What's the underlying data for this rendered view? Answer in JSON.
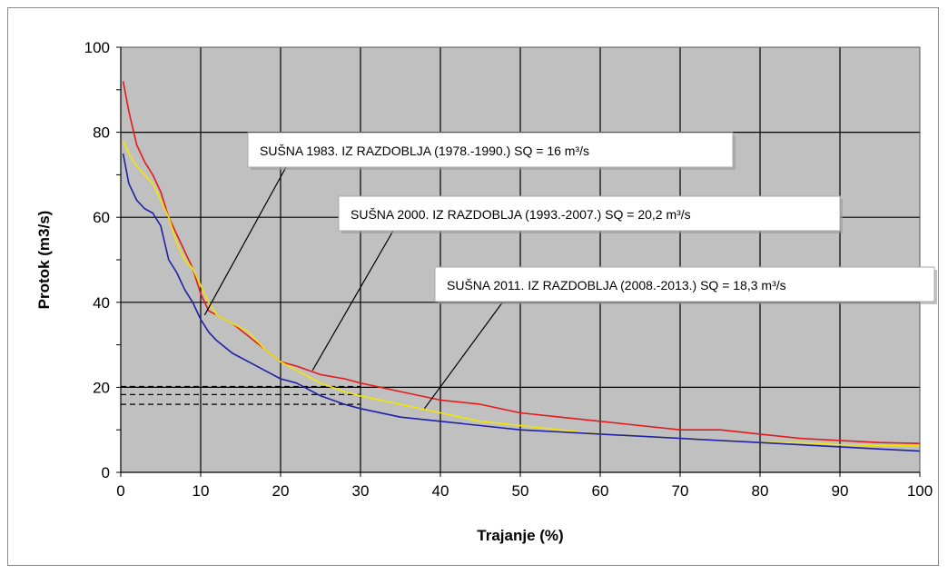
{
  "chart_data": {
    "type": "line",
    "title": "",
    "xlabel": "Trajanje (%)",
    "ylabel": "Protok (m3/s)",
    "xlim": [
      0,
      100
    ],
    "ylim": [
      0,
      100
    ],
    "x_ticks": [
      "0",
      "10",
      "20",
      "30",
      "40",
      "50",
      "60",
      "70",
      "80",
      "90",
      "100"
    ],
    "y_ticks": [
      "0",
      "20",
      "40",
      "60",
      "80",
      "100"
    ],
    "grid": true,
    "plot_background": "#c0c0c0",
    "series": [
      {
        "color": "#e41a1c",
        "x": [
          0.3,
          1,
          2,
          3,
          4,
          5,
          6,
          7,
          8,
          9,
          10,
          11,
          12,
          14,
          16,
          18,
          20,
          22,
          25,
          28,
          30,
          35,
          40,
          45,
          50,
          55,
          60,
          65,
          70,
          75,
          80,
          85,
          90,
          95,
          100
        ],
        "y": [
          92,
          85,
          77,
          73,
          70,
          66,
          60,
          56,
          52,
          48,
          42,
          38,
          37,
          35,
          32,
          29,
          26,
          25,
          23,
          22,
          21,
          19,
          17,
          16,
          14,
          13,
          12,
          11,
          10,
          10,
          9,
          8,
          7.5,
          7,
          6.8
        ]
      },
      {
        "color": "#f2e600",
        "x": [
          0.3,
          1,
          2,
          3,
          4,
          5,
          6,
          7,
          8,
          9,
          10,
          11,
          12,
          14,
          16,
          18,
          20,
          22,
          25,
          28,
          30,
          35,
          40,
          45,
          50,
          55,
          60,
          65,
          70,
          75,
          80,
          85,
          90,
          95,
          100
        ],
        "y": [
          78,
          75,
          72,
          70,
          68,
          64,
          60,
          54,
          50,
          48,
          44,
          40,
          37,
          35,
          33,
          29,
          26,
          24,
          21,
          19,
          18,
          16,
          14,
          12,
          11,
          10,
          9,
          8.5,
          8,
          7.5,
          7,
          7,
          6.5,
          6.3,
          6.3
        ]
      },
      {
        "color": "#1f1fa8",
        "x": [
          0.3,
          1,
          2,
          3,
          4,
          5,
          6,
          7,
          8,
          9,
          10,
          11,
          12,
          14,
          16,
          18,
          20,
          22,
          25,
          28,
          30,
          35,
          40,
          45,
          50,
          55,
          60,
          65,
          70,
          75,
          80,
          85,
          90,
          95,
          100
        ],
        "y": [
          75,
          68,
          64,
          62,
          61,
          58,
          50,
          47,
          43,
          40,
          36,
          33,
          31,
          28,
          26,
          24,
          22,
          21,
          18,
          16,
          15,
          13,
          12,
          11,
          10,
          9.5,
          9,
          8.5,
          8,
          7.5,
          7,
          6.5,
          6,
          5.5,
          5
        ]
      }
    ],
    "reference_lines": [
      {
        "y": 20.2,
        "x_end": 30
      },
      {
        "y": 18.3,
        "x_end": 30
      },
      {
        "y": 16,
        "x_end": 30
      }
    ],
    "annotations": [
      {
        "text": "SUŠNA 1983. IZ RAZDOBLJA (1978.-1990.) SQ = 16 m³/s",
        "points_to": [
          10.5,
          37
        ]
      },
      {
        "text": "SUŠNA 2000. IZ RAZDOBLJA (1993.-2007.) SQ = 20,2 m³/s",
        "points_to": [
          24,
          24
        ]
      },
      {
        "text": "SUŠNA 2011. IZ RAZDOBLJA (2008.-2013.) SQ = 18,3 m³/s",
        "points_to": [
          38,
          15
        ]
      }
    ]
  }
}
